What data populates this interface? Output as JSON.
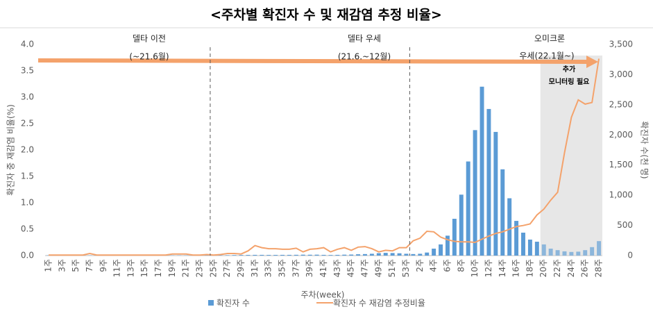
{
  "chart_data": {
    "type": "combo",
    "title": "<주차별 확진자 수 및 재감염 추정 비율>",
    "y_label": "확진자 중 재감염 비율(%)",
    "y2_label": "확진자 수(천 명)",
    "x_label": "주차(week)",
    "annotations": [
      "델타 이전",
      "(~21.6월)",
      "델타 우세",
      "(21.6.~12월)",
      "오미크론",
      "우세(22.1월~)",
      "추가",
      "모니터링 필요"
    ],
    "categories": [
      "1주",
      null,
      "3주",
      null,
      "5주",
      null,
      "7주",
      null,
      "9주",
      null,
      "11주",
      null,
      "13주",
      null,
      "15주",
      null,
      "17주",
      null,
      "19주",
      null,
      "21주",
      null,
      "23주",
      null,
      "25주",
      null,
      "27주",
      null,
      "29주",
      null,
      "31주",
      null,
      "33주",
      null,
      "35주",
      null,
      "37주",
      null,
      "39주",
      null,
      "41주",
      null,
      "43주",
      null,
      "45주",
      null,
      "47주",
      null,
      "49주",
      null,
      "51주",
      null,
      "53주",
      null,
      "2주",
      null,
      "4주",
      null,
      "6주",
      null,
      "8주",
      null,
      "10주",
      null,
      "12주",
      null,
      "14주",
      null,
      "16주",
      null,
      "18주",
      null,
      "20주",
      null,
      "22주",
      null,
      "24주",
      null,
      "26주",
      null,
      "28주"
    ],
    "series": [
      {
        "name": "확진자 수",
        "type": "bar",
        "axis": "y2",
        "color": "#5b9bd5",
        "values": [
          5,
          4,
          3,
          3,
          3,
          3,
          3,
          3,
          3,
          3,
          3,
          3,
          4,
          4,
          4,
          5,
          5,
          5,
          4,
          4,
          4,
          4,
          4,
          4,
          4,
          5,
          7,
          9,
          10,
          11,
          12,
          12,
          11,
          11,
          12,
          12,
          13,
          15,
          14,
          15,
          12,
          10,
          12,
          15,
          17,
          22,
          25,
          30,
          40,
          45,
          42,
          38,
          30,
          25,
          30,
          50,
          115,
          185,
          330,
          610,
          1010,
          1560,
          2080,
          2800,
          2430,
          2050,
          1430,
          950,
          575,
          380,
          265,
          230,
          185,
          115,
          90,
          70,
          60,
          65,
          90,
          140,
          240
        ]
      },
      {
        "name": "확진자 수 재감염 추정비율",
        "type": "line",
        "color": "#f4a26b",
        "values": [
          0.01,
          0.01,
          0.01,
          0.01,
          0.01,
          0.01,
          0.04,
          0.01,
          0.01,
          0.01,
          0.01,
          0.01,
          0.01,
          0.01,
          0.01,
          0.01,
          0.01,
          0.01,
          0.03,
          0.03,
          0.03,
          0.01,
          0.01,
          0.02,
          0.01,
          0.02,
          0.04,
          0.04,
          0.03,
          0.09,
          0.19,
          0.15,
          0.13,
          0.13,
          0.12,
          0.12,
          0.14,
          0.07,
          0.12,
          0.13,
          0.15,
          0.07,
          0.12,
          0.15,
          0.1,
          0.16,
          0.17,
          0.13,
          0.07,
          0.1,
          0.09,
          0.15,
          0.15,
          0.28,
          0.33,
          0.46,
          0.45,
          0.35,
          0.3,
          0.27,
          0.26,
          0.26,
          0.25,
          0.31,
          0.37,
          0.42,
          0.45,
          0.5,
          0.55,
          0.57,
          0.6,
          0.77,
          0.88,
          1.05,
          1.2,
          1.95,
          2.62,
          2.95,
          2.87,
          2.9,
          3.73
        ]
      }
    ],
    "ylim": [
      0,
      4
    ],
    "yticks": [
      {
        "value": 0,
        "label": "0.0"
      },
      {
        "value": 0.5,
        "label": "0.5"
      },
      {
        "value": 1,
        "label": "1.0"
      },
      {
        "value": 1.5,
        "label": "1.5"
      },
      {
        "value": 2,
        "label": "2.0"
      },
      {
        "value": 2.5,
        "label": "2.5"
      },
      {
        "value": 3,
        "label": "3.0"
      },
      {
        "value": 3.5,
        "label": "3.5"
      },
      {
        "value": 4,
        "label": "4.0"
      }
    ],
    "y2lim": [
      0,
      3500
    ],
    "y2ticks": [
      0,
      500,
      {
        "value": 1000,
        "label": "1,000"
      },
      {
        "value": 1500,
        "label": "1,500"
      },
      {
        "value": 2000,
        "label": "2,000"
      },
      {
        "value": 2500,
        "label": "2,500"
      },
      {
        "value": 3000,
        "label": "3,000"
      },
      {
        "value": 3500,
        "label": "3,500"
      }
    ]
  }
}
